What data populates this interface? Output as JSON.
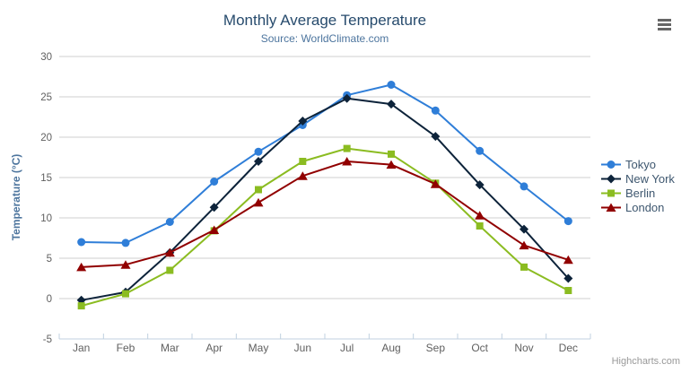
{
  "chart": {
    "title": "Monthly Average Temperature",
    "subtitle": "Source: WorldClimate.com",
    "credits": "Highcharts.com",
    "export_menu_icon": "hamburger-icon"
  },
  "chart_data": {
    "type": "line",
    "title": "Monthly Average Temperature",
    "subtitle": "Source: WorldClimate.com",
    "categories": [
      "Jan",
      "Feb",
      "Mar",
      "Apr",
      "May",
      "Jun",
      "Jul",
      "Aug",
      "Sep",
      "Oct",
      "Nov",
      "Dec"
    ],
    "xlabel": "",
    "ylabel": "Temperature (°C)",
    "ylim": [
      -5,
      30
    ],
    "ytick_step": 5,
    "grid": true,
    "legend_position": "right",
    "series": [
      {
        "name": "Tokyo",
        "color": "#2f7ed8",
        "marker": "circle",
        "values": [
          7.0,
          6.9,
          9.5,
          14.5,
          18.2,
          21.5,
          25.2,
          26.5,
          23.3,
          18.3,
          13.9,
          9.6
        ]
      },
      {
        "name": "New York",
        "color": "#0d233a",
        "marker": "diamond",
        "values": [
          -0.2,
          0.8,
          5.7,
          11.3,
          17.0,
          22.0,
          24.8,
          24.1,
          20.1,
          14.1,
          8.6,
          2.5
        ]
      },
      {
        "name": "Berlin",
        "color": "#8bbc21",
        "marker": "square",
        "values": [
          -0.9,
          0.6,
          3.5,
          8.4,
          13.5,
          17.0,
          18.6,
          17.9,
          14.3,
          9.0,
          3.9,
          1.0
        ]
      },
      {
        "name": "London",
        "color": "#910000",
        "marker": "triangle",
        "values": [
          3.9,
          4.2,
          5.7,
          8.5,
          11.9,
          15.2,
          17.0,
          16.6,
          14.2,
          10.3,
          6.6,
          4.8
        ]
      }
    ]
  },
  "colors": {
    "title": "#274b6d",
    "subtitle": "#4d759e",
    "axis_title": "#4d759e",
    "axis_labels": "#606060",
    "gridline": "#cfcfcf",
    "axis_line": "#c0d0e0",
    "legend_text": "#3e576f",
    "credits": "#999999",
    "background": "#ffffff"
  }
}
